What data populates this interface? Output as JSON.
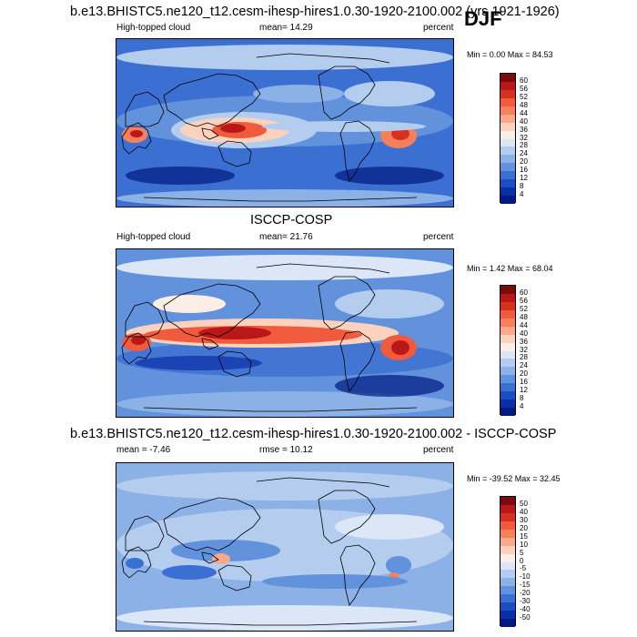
{
  "season": "DJF",
  "panels": [
    {
      "title": "b.e13.BHISTC5.ne120_t12.cesm-ihesp-hires1.0.30-1920-2100.002 (yrs 1921-1926)",
      "left": "High-topped cloud",
      "center": "mean=  14.29",
      "right": "percent",
      "minmax": "Min =   0.00 Max =  84.53",
      "colorbar_labels": [
        "60",
        "56",
        "52",
        "48",
        "44",
        "40",
        "36",
        "32",
        "28",
        "24",
        "20",
        "16",
        "12",
        "8",
        "4"
      ]
    },
    {
      "title": "ISCCP-COSP",
      "left": "High-topped cloud",
      "center": "mean=  21.76",
      "right": "percent",
      "minmax": "Min =   1.42 Max =  68.04",
      "colorbar_labels": [
        "60",
        "56",
        "52",
        "48",
        "44",
        "40",
        "36",
        "32",
        "28",
        "24",
        "20",
        "16",
        "12",
        "8",
        "4"
      ]
    },
    {
      "title": "b.e13.BHISTC5.ne120_t12.cesm-ihesp-hires1.0.30-1920-2100.002 - ISCCP-COSP",
      "left": "mean =  -7.46",
      "center": "rmse =  10.12",
      "right": "percent",
      "minmax": "Min = -39.52 Max =  32.45",
      "colorbar_labels": [
        "50",
        "40",
        "30",
        "20",
        "15",
        "10",
        "5",
        "0",
        "-5",
        "-10",
        "-15",
        "-20",
        "-30",
        "-40",
        "-50"
      ]
    }
  ],
  "colors": {
    "seq": [
      "#7d0a0a",
      "#b81818",
      "#d7301f",
      "#ef5b3c",
      "#f6805c",
      "#f9a98a",
      "#fcd1bd",
      "#fbeee6",
      "#dbe6f6",
      "#b4cdef",
      "#8cb1e6",
      "#6392dc",
      "#3b6fd1",
      "#1c4ec3",
      "#0a2ea6",
      "#001a80"
    ],
    "div": [
      "#7d0a0a",
      "#b81818",
      "#d7301f",
      "#ef5b3c",
      "#f6805c",
      "#f9a98a",
      "#fcd1bd",
      "#fbeee6",
      "#dbe6f6",
      "#b4cdef",
      "#8cb1e6",
      "#6392dc",
      "#3b6fd1",
      "#1c4ec3",
      "#0a2ea6",
      "#001a80"
    ],
    "land_line": "#000000"
  },
  "chart_data": [
    {
      "type": "heatmap",
      "title": "b.e13.BHISTC5.ne120_t12.cesm-ihesp-hires1.0.30-1920-2100.002 (yrs 1921-1926)",
      "variable": "High-topped cloud",
      "units": "percent",
      "mean": 14.29,
      "min": 0.0,
      "max": 84.53,
      "levels": [
        4,
        8,
        12,
        16,
        20,
        24,
        28,
        32,
        36,
        40,
        44,
        48,
        52,
        56,
        60
      ]
    },
    {
      "type": "heatmap",
      "title": "ISCCP-COSP",
      "variable": "High-topped cloud",
      "units": "percent",
      "mean": 21.76,
      "min": 1.42,
      "max": 68.04,
      "levels": [
        4,
        8,
        12,
        16,
        20,
        24,
        28,
        32,
        36,
        40,
        44,
        48,
        52,
        56,
        60
      ]
    },
    {
      "type": "heatmap",
      "title": "b.e13.BHISTC5.ne120_t12.cesm-ihesp-hires1.0.30-1920-2100.002 - ISCCP-COSP",
      "units": "percent",
      "mean": -7.46,
      "rmse": 10.12,
      "min": -39.52,
      "max": 32.45,
      "levels": [
        -50,
        -40,
        -30,
        -20,
        -15,
        -10,
        -5,
        0,
        5,
        10,
        15,
        20,
        30,
        40,
        50
      ]
    }
  ]
}
